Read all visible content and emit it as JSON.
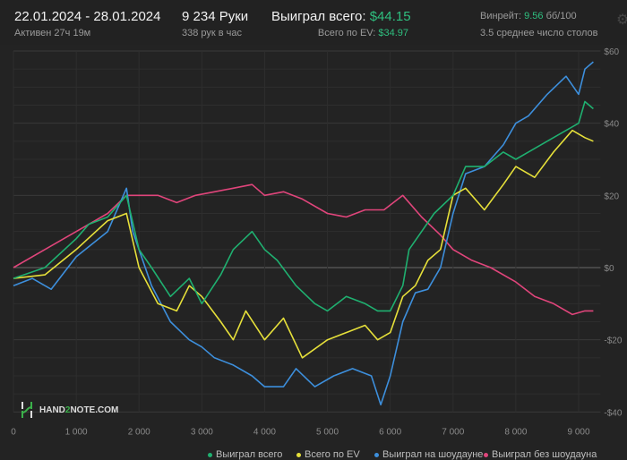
{
  "header": {
    "date_range": "22.01.2024 - 28.01.2024",
    "active": "Активен 27ч 19м",
    "hands": "9 234 Руки",
    "hands_per_hour": "338 рук в час",
    "won_label": "Выиграл всего:",
    "won_value": "$44.15",
    "ev_label": "Всего по EV:",
    "ev_value": "$34.97",
    "winrate_label": "Винрейт:",
    "winrate_value": "9.56",
    "winrate_unit": "бб/100",
    "tables": "3.5 среднее число столов",
    "settings_icon": "gear-icon"
  },
  "logo": {
    "text_a": "HAND",
    "text_b": "2",
    "text_c": "NOTE.COM"
  },
  "chart_data": {
    "type": "line",
    "xlim": [
      0,
      9234
    ],
    "ylim": [
      -40,
      60
    ],
    "x_ticks": [
      0,
      1000,
      2000,
      3000,
      4000,
      5000,
      6000,
      7000,
      8000,
      9000
    ],
    "x_tick_labels": [
      "0",
      "1 000",
      "2 000",
      "3 000",
      "4 000",
      "5 000",
      "6 000",
      "7 000",
      "8 000",
      "9 000"
    ],
    "y_ticks": [
      60,
      40,
      20,
      0,
      -20,
      -40
    ],
    "y_tick_labels": [
      "$60",
      "$40",
      "$20",
      "$0",
      "-$20",
      "-$40"
    ],
    "grid": true,
    "legend": "bottom-right",
    "series": [
      {
        "name": "Выиграл без шоудауна",
        "color": "#e0457b",
        "x": [
          0,
          500,
          1000,
          1500,
          1800,
          2000,
          2300,
          2600,
          2900,
          3200,
          3500,
          3800,
          4000,
          4300,
          4600,
          5000,
          5300,
          5600,
          5900,
          6200,
          6500,
          6800,
          7000,
          7300,
          7600,
          8000,
          8300,
          8600,
          8900,
          9100,
          9234
        ],
        "y": [
          0,
          5,
          10,
          15,
          20,
          20,
          20,
          18,
          20,
          21,
          22,
          23,
          20,
          21,
          19,
          15,
          14,
          16,
          16,
          20,
          14,
          9,
          5,
          2,
          0,
          -4,
          -8,
          -10,
          -13,
          -12,
          -12
        ]
      },
      {
        "name": "Выиграл на шоудауне",
        "color": "#3d8fdc",
        "x": [
          0,
          300,
          600,
          1000,
          1500,
          1800,
          1900,
          2200,
          2500,
          2800,
          3000,
          3200,
          3500,
          3800,
          4000,
          4300,
          4500,
          4800,
          5100,
          5400,
          5700,
          5850,
          6000,
          6200,
          6400,
          6600,
          6800,
          7000,
          7200,
          7500,
          7800,
          8000,
          8200,
          8500,
          8800,
          9000,
          9100,
          9234
        ],
        "y": [
          -5,
          -3,
          -6,
          3,
          10,
          22,
          10,
          -5,
          -15,
          -20,
          -22,
          -25,
          -27,
          -30,
          -33,
          -33,
          -28,
          -33,
          -30,
          -28,
          -30,
          -38,
          -30,
          -15,
          -7,
          -6,
          0,
          15,
          26,
          28,
          34,
          40,
          42,
          48,
          53,
          48,
          55,
          57
        ]
      },
      {
        "name": "Всего по EV",
        "color": "#e6e03a",
        "x": [
          0,
          500,
          1000,
          1500,
          1800,
          2000,
          2300,
          2600,
          2800,
          3000,
          3300,
          3500,
          3700,
          4000,
          4300,
          4600,
          5000,
          5300,
          5600,
          5800,
          6000,
          6200,
          6400,
          6600,
          6800,
          7000,
          7200,
          7400,
          7500,
          7800,
          8000,
          8300,
          8600,
          8900,
          9100,
          9234
        ],
        "y": [
          -3,
          -2,
          5,
          13,
          15,
          0,
          -10,
          -12,
          -5,
          -8,
          -15,
          -20,
          -12,
          -20,
          -14,
          -25,
          -20,
          -18,
          -16,
          -20,
          -18,
          -8,
          -5,
          2,
          5,
          20,
          22,
          18,
          16,
          23,
          28,
          25,
          32,
          38,
          36,
          35
        ]
      },
      {
        "name": "Выиграл всего",
        "color": "#1fb070",
        "x": [
          0,
          500,
          1000,
          1200,
          1500,
          1700,
          1800,
          2000,
          2200,
          2500,
          2800,
          3000,
          3300,
          3500,
          3800,
          4000,
          4200,
          4500,
          4800,
          5000,
          5300,
          5600,
          5800,
          6000,
          6200,
          6300,
          6500,
          6700,
          7000,
          7200,
          7500,
          7800,
          8000,
          8200,
          8500,
          8800,
          9000,
          9100,
          9234
        ],
        "y": [
          -3,
          0,
          8,
          12,
          14,
          18,
          20,
          5,
          0,
          -8,
          -3,
          -10,
          -2,
          5,
          10,
          5,
          2,
          -5,
          -10,
          -12,
          -8,
          -10,
          -12,
          -12,
          -5,
          5,
          10,
          15,
          20,
          28,
          28,
          32,
          30,
          32,
          35,
          38,
          40,
          46,
          44
        ]
      }
    ],
    "legend_order": [
      "Выиграл всего",
      "Всего по EV",
      "Выиграл на шоудауне",
      "Выиграл без шоудауна"
    ]
  }
}
